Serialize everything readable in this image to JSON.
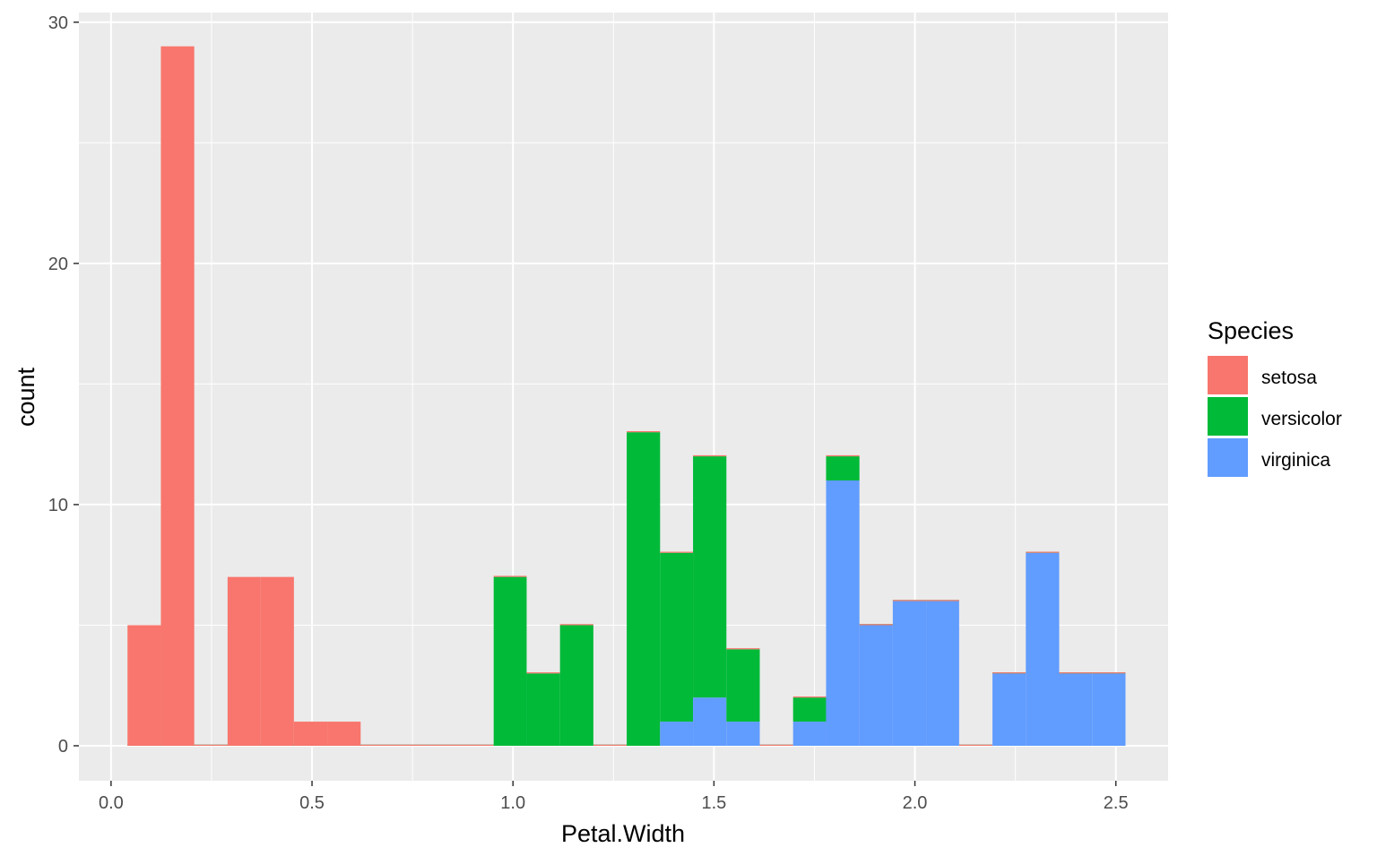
{
  "chart_data": {
    "type": "bar",
    "stacked": true,
    "xlabel": "Petal.Width",
    "ylabel": "count",
    "xlim": [
      -0.08,
      2.63
    ],
    "ylim": [
      -1.45,
      30.4
    ],
    "xticks": [
      0.0,
      0.5,
      1.0,
      1.5,
      2.0,
      2.5
    ],
    "xtick_labels": [
      "0.0",
      "0.5",
      "1.0",
      "1.5",
      "2.0",
      "2.5"
    ],
    "yticks": [
      0,
      10,
      20,
      30
    ],
    "ytick_labels": [
      "0",
      "10",
      "20",
      "30"
    ],
    "grid": true,
    "legend_position": "right",
    "legend_title": "Species",
    "bins": [
      [
        0.041,
        0.124
      ],
      [
        0.124,
        0.207
      ],
      [
        0.207,
        0.29
      ],
      [
        0.29,
        0.372
      ],
      [
        0.372,
        0.455
      ],
      [
        0.455,
        0.538
      ],
      [
        0.538,
        0.621
      ],
      [
        0.621,
        0.703
      ],
      [
        0.703,
        0.786
      ],
      [
        0.786,
        0.869
      ],
      [
        0.869,
        0.952
      ],
      [
        0.952,
        1.034
      ],
      [
        1.034,
        1.117
      ],
      [
        1.117,
        1.2
      ],
      [
        1.2,
        1.283
      ],
      [
        1.283,
        1.366
      ],
      [
        1.366,
        1.448
      ],
      [
        1.448,
        1.531
      ],
      [
        1.531,
        1.614
      ],
      [
        1.614,
        1.697
      ],
      [
        1.697,
        1.779
      ],
      [
        1.779,
        1.862
      ],
      [
        1.862,
        1.945
      ],
      [
        1.945,
        2.028
      ],
      [
        2.028,
        2.11
      ],
      [
        2.11,
        2.193
      ],
      [
        2.193,
        2.276
      ],
      [
        2.276,
        2.359
      ],
      [
        2.359,
        2.441
      ],
      [
        2.441,
        2.524
      ]
    ],
    "series": [
      {
        "name": "virginica",
        "color": "#619CFF",
        "values": [
          0,
          0,
          0,
          0,
          0,
          0,
          0,
          0,
          0,
          0,
          0,
          0,
          0,
          0,
          0,
          0,
          1,
          2,
          1,
          0,
          1,
          11,
          5,
          6,
          6,
          0,
          3,
          8,
          3,
          3
        ]
      },
      {
        "name": "versicolor",
        "color": "#00BA38",
        "values": [
          0,
          0,
          0,
          0,
          0,
          0,
          0,
          0,
          0,
          0,
          0,
          7,
          3,
          5,
          0,
          13,
          7,
          10,
          3,
          0,
          1,
          1,
          0,
          0,
          0,
          0,
          0,
          0,
          0,
          0
        ]
      },
      {
        "name": "setosa",
        "color": "#F8766D",
        "values": [
          5,
          29,
          0,
          7,
          7,
          1,
          1,
          0,
          0,
          0,
          0,
          0,
          0,
          0,
          0,
          0,
          0,
          0,
          0,
          0,
          0,
          0,
          0,
          0,
          0,
          0,
          0,
          0,
          0,
          0
        ]
      }
    ]
  },
  "legend": {
    "title": "Species",
    "items": [
      {
        "label": "setosa",
        "color": "#F8766D"
      },
      {
        "label": "versicolor",
        "color": "#00BA38"
      },
      {
        "label": "virginica",
        "color": "#619CFF"
      }
    ]
  }
}
